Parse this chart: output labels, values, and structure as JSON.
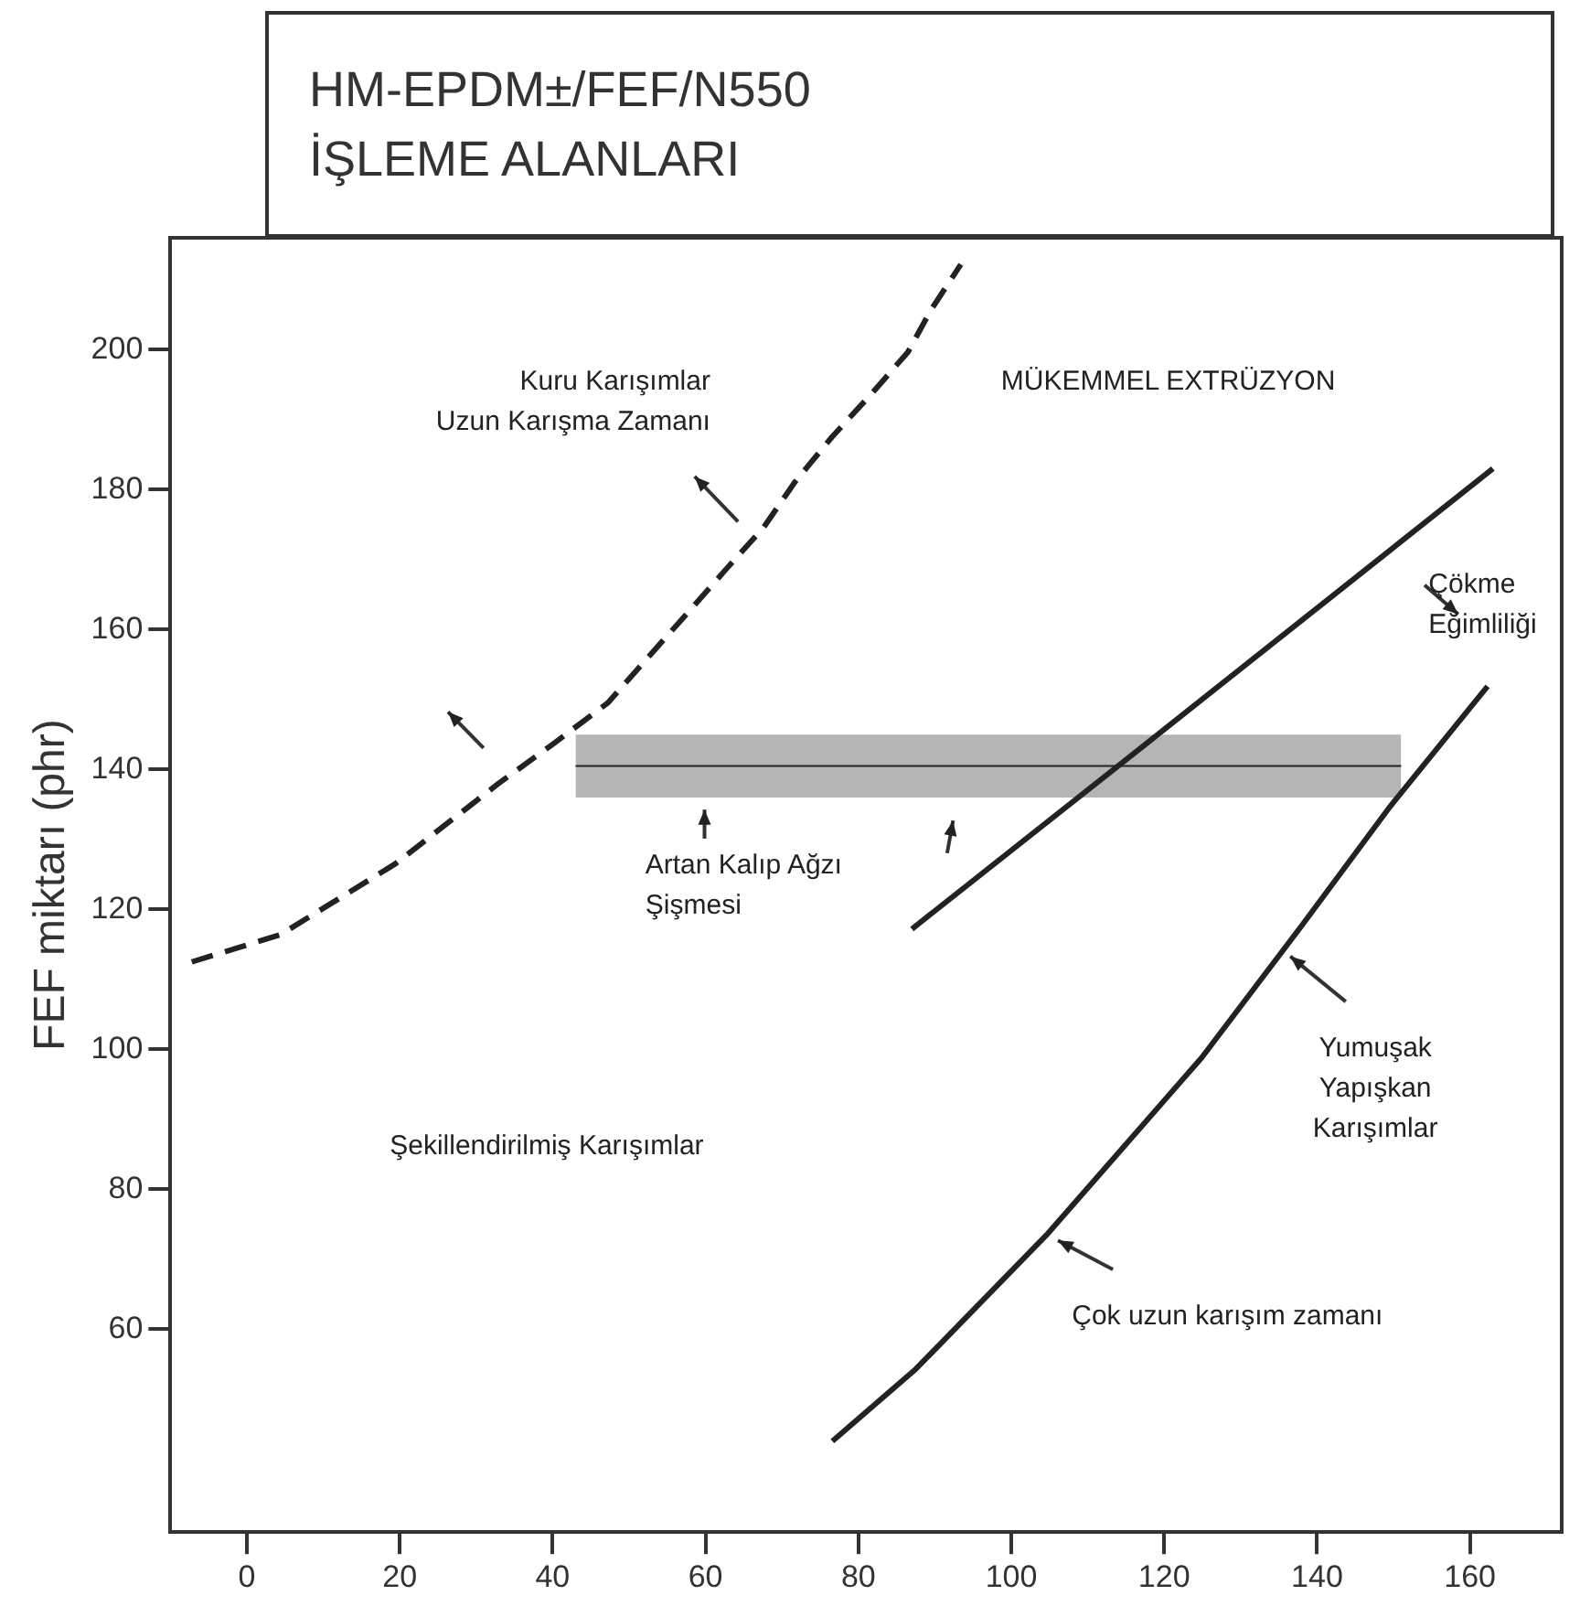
{
  "chart_data": {
    "type": "line",
    "title": "HM-EPDM±/FEF/N550",
    "subtitle": "İŞLEME ALANLARI",
    "ylabel": "FEF miktarı (phr)",
    "xlim": [
      -10,
      172
    ],
    "xticks": [
      0,
      20,
      40,
      60,
      80,
      100,
      120,
      140,
      160
    ],
    "ylim": [
      31,
      216
    ],
    "yticks": [
      60,
      80,
      100,
      120,
      140,
      160,
      180,
      200
    ],
    "grid": false,
    "marker": "none",
    "series": [
      {
        "color": "#222222",
        "line_style": "dashed",
        "x": [
          -7.2,
          4.4,
          19.4,
          32.8,
          40,
          47.2,
          57.5,
          62.5,
          67.6,
          71.7,
          76.6,
          81.8,
          86.5,
          89.5,
          93.4
        ],
        "values": [
          112.5,
          116.4,
          126.5,
          137.9,
          143.6,
          149.5,
          162.2,
          168.4,
          174.6,
          181.1,
          187.6,
          193.8,
          199.7,
          205.7,
          212.2
        ]
      },
      {
        "color": "#222222",
        "line_style": "solid",
        "x": [
          87,
          118,
          163
        ],
        "values": [
          117.2,
          144,
          183
        ]
      },
      {
        "color": "#222222",
        "line_style": "solid",
        "x": [
          76.6,
          87.5,
          104.8,
          124.9,
          137.8,
          149.4,
          162.3
        ],
        "values": [
          44,
          54.3,
          73.7,
          98.8,
          117.4,
          134.5,
          151.9
        ]
      },
      {
        "color": "#222222",
        "x": [
          43,
          151
        ],
        "values": [
          140.5,
          140.5
        ],
        "lower": [
          136,
          136
        ],
        "upper": [
          145,
          145
        ]
      }
    ],
    "annotations": [
      "MÜKEMMEL EXTRÜZYON",
      "Kuru Karışımlar\nUzun Karışma Zamanı",
      "Çökme\nEğimliliği",
      "Artan Kalıp Ağzı\nŞişmesi",
      "Şekillendirilmiş Karışımlar",
      {
        "text": "Yumuşak\nYapışkan\nKarışımlar",
        "x": 136.5,
        "y": 113.3
      },
      {
        "text": "Çok uzun karışım zamanı",
        "x": 106.1,
        "y": 72.7
      }
    ]
  }
}
